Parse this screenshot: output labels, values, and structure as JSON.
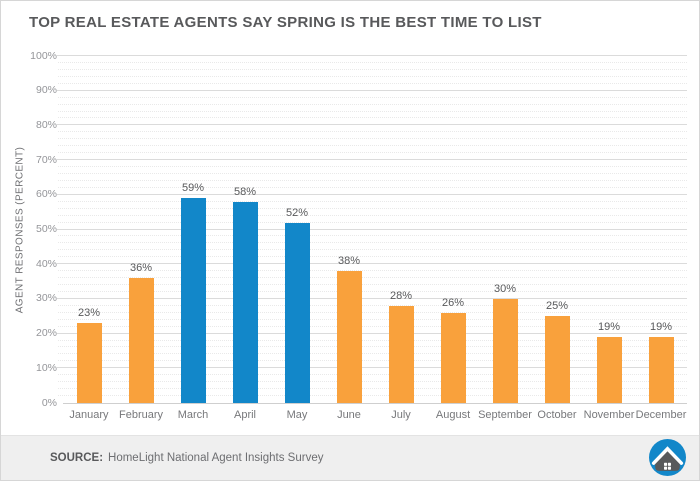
{
  "title": "TOP REAL ESTATE AGENTS SAY SPRING IS THE BEST TIME TO LIST",
  "chart_data": {
    "type": "bar",
    "title": "TOP REAL ESTATE AGENTS SAY SPRING IS THE BEST TIME TO LIST",
    "categories": [
      "January",
      "February",
      "March",
      "April",
      "May",
      "June",
      "July",
      "August",
      "September",
      "October",
      "November",
      "December"
    ],
    "series": [
      {
        "name": "Agent responses",
        "values": [
          23,
          36,
          59,
          58,
          52,
          38,
          28,
          26,
          30,
          25,
          19,
          19
        ]
      }
    ],
    "value_labels": [
      "23%",
      "36%",
      "59%",
      "58%",
      "52%",
      "38%",
      "28%",
      "26%",
      "30%",
      "25%",
      "19%",
      "19%"
    ],
    "bar_colors": [
      "#F9A13C",
      "#F9A13C",
      "#1287C9",
      "#1287C9",
      "#1287C9",
      "#F9A13C",
      "#F9A13C",
      "#F9A13C",
      "#F9A13C",
      "#F9A13C",
      "#F9A13C",
      "#F9A13C"
    ],
    "highlighted_categories": [
      "March",
      "April",
      "May"
    ],
    "xlabel": "",
    "ylabel": "AGENT RESPONSES (PERCENT)",
    "ylim": [
      0,
      100
    ],
    "ytick_labels": [
      "0%",
      "10%",
      "20%",
      "30%",
      "40%",
      "50%",
      "60%",
      "70%",
      "80%",
      "90%",
      "100%"
    ],
    "grid": {
      "major_step": 10,
      "minor_step": 2,
      "major_style": "solid",
      "minor_style": "dotted"
    },
    "legend": "none"
  },
  "footer": {
    "source_label": "SOURCE:",
    "source_text": "HomeLight National Agent Insights Survey",
    "logo_name": "homelight-house-logo"
  },
  "colors": {
    "bar_default": "#F9A13C",
    "bar_highlight": "#1287C9",
    "title_text": "#58595B",
    "axis_text": "#77787B",
    "grid_major": "#DBDBDB",
    "grid_minor": "#E9E9E9",
    "footer_bg": "#EFEFEF",
    "logo_blue": "#1287C9",
    "logo_gray": "#58595B"
  }
}
